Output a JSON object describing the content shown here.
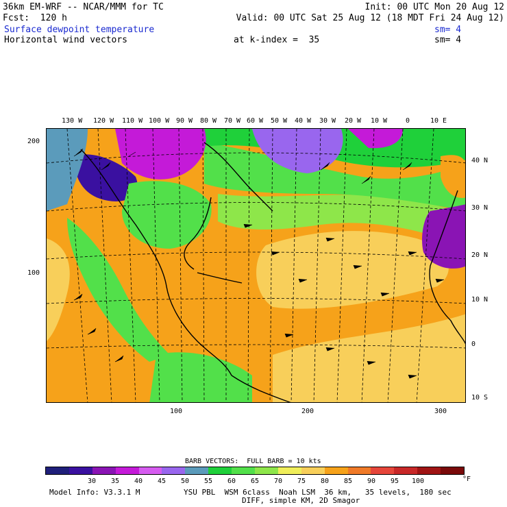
{
  "header": {
    "model_line": "36km EM-WRF -- NCAR/MMM for TC",
    "init_line": "Init: 00 UTC Mon 20 Aug 12",
    "fcst_line": "Fcst:  120 h",
    "valid_line": "Valid: 00 UTC Sat 25 Aug 12 (18 MDT Fri 24 Aug 12)",
    "field1_label": "Surface dewpoint temperature",
    "field1_sm": "sm= 4",
    "field2_label": "Horizontal wind vectors",
    "field2_kindex": "at k-index =  35",
    "field2_sm": "sm= 4"
  },
  "map": {
    "top_lon_labels": [
      "130 W",
      "120 W",
      "110 W",
      "100 W",
      "90 W",
      "80 W",
      "70 W",
      "60 W",
      "50 W",
      "40 W",
      "30 W",
      "20 W",
      "10 W",
      "0",
      "10 E"
    ],
    "right_lat_labels": [
      "40 N",
      "30 N",
      "20 N",
      "10 N",
      "0",
      "10 S"
    ],
    "left_grid_labels": [
      "200",
      "100"
    ],
    "bottom_grid_labels": [
      "100",
      "200",
      "300"
    ]
  },
  "legend": {
    "barb_title": "BARB VECTORS:  FULL BARB = 10 kts",
    "colorbar_labels": [
      "30",
      "35",
      "40",
      "45",
      "50",
      "55",
      "60",
      "65",
      "70",
      "75",
      "80",
      "85",
      "90",
      "95",
      "100"
    ],
    "unit": "°F",
    "colors": [
      "#1f1f7a",
      "#3a10a0",
      "#8a14b4",
      "#c41ad8",
      "#d65cf0",
      "#9966ee",
      "#5b9bbb",
      "#1fd03a",
      "#52e04a",
      "#8ee64a",
      "#f0ee5a",
      "#f8cf5a",
      "#f6a21a",
      "#f07a28",
      "#e6463a",
      "#c82828",
      "#a01414",
      "#7a0a0a"
    ]
  },
  "footer": {
    "model_info": "Model Info: V3.3.1 M",
    "physics": "YSU PBL  WSM 6class  Noah LSM  36 km,   35 levels,  180 sec",
    "diff": "DIFF, simple KM, 2D Smagor"
  }
}
